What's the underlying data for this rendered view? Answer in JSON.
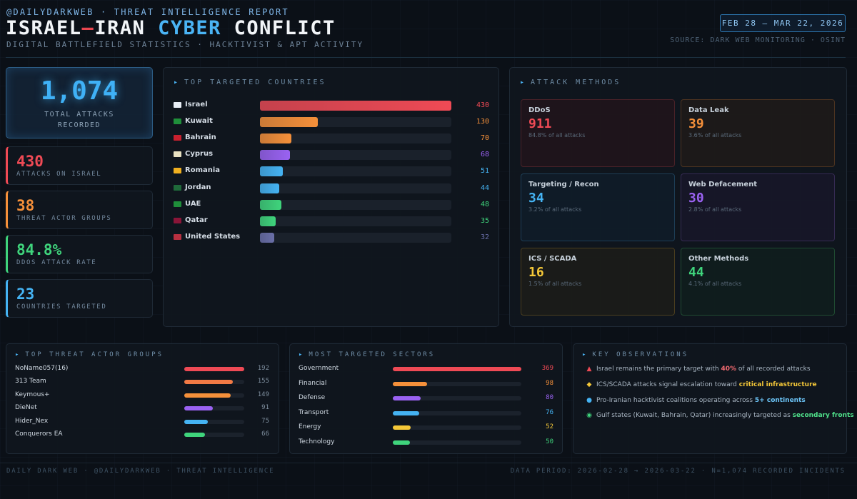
{
  "header": {
    "tag": "@DAILYDARKWEB · THREAT INTELLIGENCE REPORT",
    "title_part1": "ISRAEL",
    "title_dash": "–",
    "title_part2": "IRAN",
    "title_part3": "CYBER",
    "title_part4": "CONFLICT",
    "subtitle": "DIGITAL BATTLEFIELD STATISTICS · HACKTIVIST & APT ACTIVITY",
    "date_range": "FEB 28 – MAR 22, 2026",
    "source": "SOURCE: DARK WEB MONITORING · OSINT"
  },
  "summary": {
    "total_value": "1,074",
    "total_label_line1": "TOTAL ATTACKS",
    "total_label_line2": "RECORDED",
    "stats": [
      {
        "value": "430",
        "label": "ATTACKS ON ISRAEL",
        "color": "#ef4a55"
      },
      {
        "value": "38",
        "label": "THREAT ACTOR GROUPS",
        "color": "#f5903a"
      },
      {
        "value": "84.8%",
        "label": "DDOS ATTACK RATE",
        "color": "#3fd47c"
      },
      {
        "value": "23",
        "label": "COUNTRIES TARGETED",
        "color": "#45b3f3"
      }
    ]
  },
  "chart_data": [
    {
      "type": "bar",
      "title": "TOP TARGETED COUNTRIES",
      "categories": [
        "Israel",
        "Kuwait",
        "Bahrain",
        "Cyprus",
        "Romania",
        "Jordan",
        "UAE",
        "Qatar",
        "United States"
      ],
      "values": [
        430,
        130,
        70,
        68,
        51,
        44,
        48,
        35,
        32
      ],
      "colors": [
        "#ef4a55",
        "#f5903a",
        "#f5903a",
        "#9a62f2",
        "#45b3f3",
        "#45b3f3",
        "#3fd47c",
        "#3fd47c",
        "#6a6fa8"
      ],
      "flags": [
        "#e8eef6",
        "#1f8f3a",
        "#c8202e",
        "#e8e1c2",
        "#f0b020",
        "#1f6a3a",
        "#1f8f3a",
        "#8a1538",
        "#b83040"
      ],
      "max": 430
    },
    {
      "type": "table",
      "title": "ATTACK METHODS",
      "items": [
        {
          "name": "DDoS",
          "value": "911",
          "pct": "84.8% of all attacks",
          "color": "#ef4a55",
          "border": "#4a2228",
          "bg": "rgba(60,20,26,0.35)"
        },
        {
          "name": "Data Leak",
          "value": "39",
          "pct": "3.6% of all attacks",
          "color": "#f5903a",
          "border": "#4c3320",
          "bg": "rgba(60,38,18,0.3)"
        },
        {
          "name": "Targeting / Recon",
          "value": "34",
          "pct": "3.2% of all attacks",
          "color": "#45b3f3",
          "border": "#1d3d55",
          "bg": "rgba(16,40,60,0.35)"
        },
        {
          "name": "Web Defacement",
          "value": "30",
          "pct": "2.8% of all attacks",
          "color": "#9a62f2",
          "border": "#352a52",
          "bg": "rgba(36,26,60,0.35)"
        },
        {
          "name": "ICS / SCADA",
          "value": "16",
          "pct": "1.5% of all attacks",
          "color": "#f5c838",
          "border": "#4a3d1e",
          "bg": "rgba(52,42,16,0.3)"
        },
        {
          "name": "Other Methods",
          "value": "44",
          "pct": "4.1% of all attacks",
          "color": "#3fd47c",
          "border": "#1f4a31",
          "bg": "rgba(16,48,30,0.3)"
        }
      ]
    },
    {
      "type": "bar",
      "title": "TOP THREAT ACTOR GROUPS",
      "categories": [
        "NoName057(16)",
        "313 Team",
        "Keymous+",
        "DieNet",
        "Hider_Nex",
        "Conquerors EA"
      ],
      "values": [
        192,
        155,
        149,
        91,
        75,
        66
      ],
      "colors": [
        "#ef4a55",
        "#f27a45",
        "#f5903a",
        "#9a62f2",
        "#45b3f3",
        "#3fd47c"
      ],
      "max": 192
    },
    {
      "type": "bar",
      "title": "MOST TARGETED SECTORS",
      "categories": [
        "Government",
        "Financial",
        "Defense",
        "Transport",
        "Energy",
        "Technology"
      ],
      "values": [
        369,
        98,
        80,
        76,
        52,
        50
      ],
      "colors": [
        "#ef4a55",
        "#f5903a",
        "#9a62f2",
        "#45b3f3",
        "#f5c838",
        "#3fd47c"
      ],
      "max": 369
    }
  ],
  "observations": {
    "title": "KEY OBSERVATIONS",
    "items": [
      {
        "icon": "▲",
        "icon_color": "#ef4a55",
        "pre": "Israel remains the primary target with ",
        "hl": "40%",
        "post": " of all recorded attacks",
        "hl_color": "#f06a70"
      },
      {
        "icon": "◆",
        "icon_color": "#f5c838",
        "pre": "ICS/SCADA attacks signal escalation toward ",
        "hl": "critical infrastructure",
        "post": "",
        "hl_color": "#f5c838"
      },
      {
        "icon": "●",
        "icon_color": "#45b3f3",
        "pre": "Pro-Iranian hacktivist coalitions operating across ",
        "hl": "5+ continents",
        "post": "",
        "hl_color": "#6cc4f7"
      },
      {
        "icon": "◉",
        "icon_color": "#3fd47c",
        "pre": "Gulf states (Kuwait, Bahrain, Qatar) increasingly targeted as ",
        "hl": "secondary fronts",
        "post": "",
        "hl_color": "#4fe08a"
      }
    ]
  },
  "footer": {
    "left": "DAILY DARK WEB · @DAILYDARKWEB · THREAT INTELLIGENCE",
    "right": "DATA PERIOD: 2026-02-28 → 2026-03-22 · N=1,074 RECORDED INCIDENTS"
  }
}
